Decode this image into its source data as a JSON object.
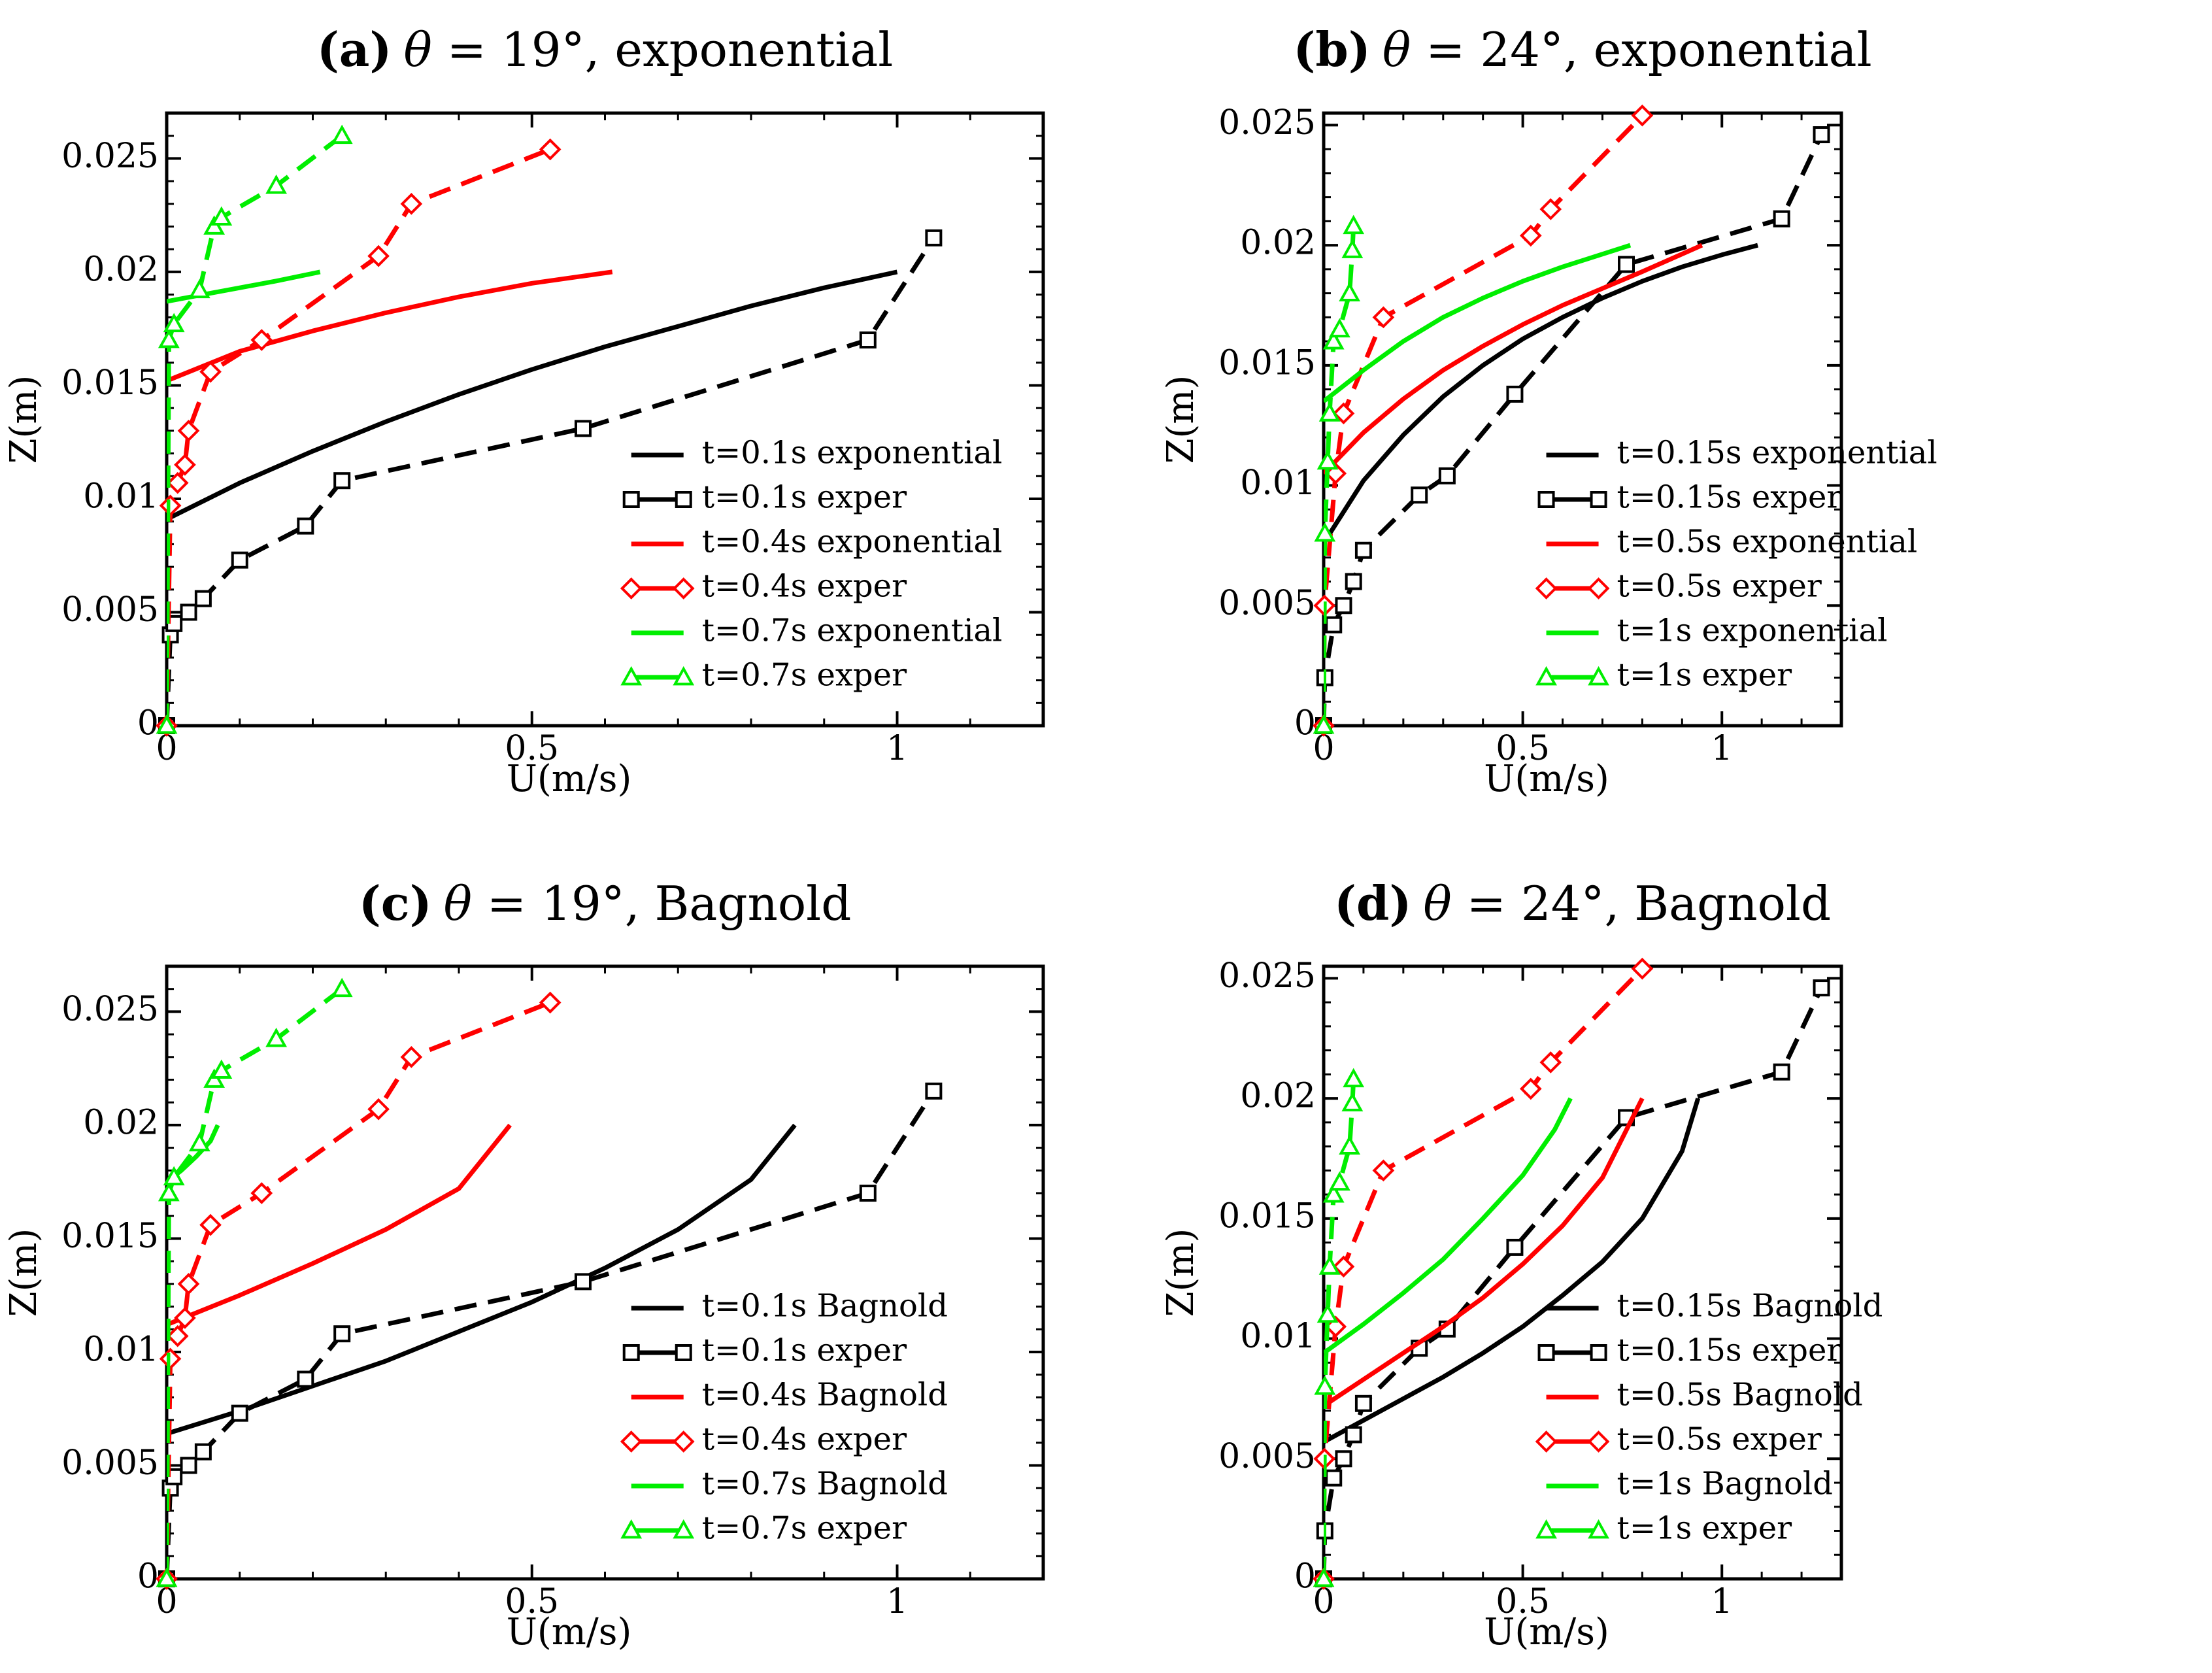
{
  "chart_data": [
    {
      "type": "line",
      "title": {
        "label": "(a)",
        "greek": "θ",
        "rest": " = 19°, exponential"
      },
      "xlabel": "U(m/s)",
      "ylabel": "Z(m)",
      "xlim": [
        0,
        1.2
      ],
      "ylim": [
        0,
        0.027
      ],
      "xticks": [
        {
          "v": 0,
          "label": "0"
        },
        {
          "v": 0.5,
          "label": "0.5"
        },
        {
          "v": 1,
          "label": "1"
        }
      ],
      "yticks": [
        {
          "v": 0,
          "label": "0"
        },
        {
          "v": 0.005,
          "label": "0.005"
        },
        {
          "v": 0.01,
          "label": "0.01"
        },
        {
          "v": 0.015,
          "label": "0.015"
        },
        {
          "v": 0.02,
          "label": "0.02"
        },
        {
          "v": 0.025,
          "label": "0.025"
        }
      ],
      "legend_position": "bottom-right",
      "series": [
        {
          "name": "t=0.1s exponential",
          "color": "#000000",
          "style": "solid",
          "marker": "none",
          "x": [
            0,
            0.1,
            0.2,
            0.3,
            0.4,
            0.5,
            0.6,
            0.7,
            0.8,
            0.9,
            1.0
          ],
          "y": [
            0.0091,
            0.0107,
            0.0121,
            0.0134,
            0.0146,
            0.0157,
            0.0167,
            0.0176,
            0.0185,
            0.0193,
            0.02
          ]
        },
        {
          "name": "t=0.1s exper",
          "color": "#000000",
          "style": "dashed",
          "marker": "square",
          "x": [
            0.0,
            0.005,
            0.01,
            0.03,
            0.05,
            0.1,
            0.19,
            0.24,
            0.57,
            0.96,
            1.05
          ],
          "y": [
            0.0,
            0.004,
            0.0045,
            0.005,
            0.0056,
            0.0073,
            0.0088,
            0.0108,
            0.0131,
            0.017,
            0.0215
          ]
        },
        {
          "name": "t=0.4s exponential",
          "color": "#ff0000",
          "style": "solid",
          "marker": "none",
          "x": [
            0,
            0.1,
            0.2,
            0.3,
            0.4,
            0.5,
            0.61
          ],
          "y": [
            0.0152,
            0.0165,
            0.0174,
            0.0182,
            0.0189,
            0.0195,
            0.02
          ]
        },
        {
          "name": "t=0.4s exper",
          "color": "#ff0000",
          "style": "dashed",
          "marker": "diamond",
          "x": [
            0.0,
            0.005,
            0.015,
            0.025,
            0.03,
            0.06,
            0.13,
            0.29,
            0.335,
            0.525
          ],
          "y": [
            0.0,
            0.0097,
            0.0107,
            0.0115,
            0.013,
            0.0156,
            0.017,
            0.0207,
            0.023,
            0.0254
          ]
        },
        {
          "name": "t=0.7s exponential",
          "color": "#00ee00",
          "style": "solid",
          "marker": "none",
          "x": [
            0,
            0.05,
            0.1,
            0.15,
            0.21
          ],
          "y": [
            0.0187,
            0.019,
            0.0193,
            0.0196,
            0.02
          ]
        },
        {
          "name": "t=0.7s exper",
          "color": "#00ee00",
          "style": "dashed",
          "marker": "triangle",
          "x": [
            0.0,
            0.003,
            0.01,
            0.045,
            0.065,
            0.075,
            0.15,
            0.24
          ],
          "y": [
            0.0,
            0.017,
            0.0177,
            0.0192,
            0.022,
            0.0224,
            0.0238,
            0.026
          ]
        }
      ]
    },
    {
      "type": "line",
      "title": {
        "label": "(b)",
        "greek": "θ",
        "rest": " = 24°, exponential"
      },
      "xlabel": "U(m/s)",
      "ylabel": "Z(m)",
      "xlim": [
        0,
        1.3
      ],
      "ylim": [
        0,
        0.0255
      ],
      "xticks": [
        {
          "v": 0,
          "label": "0"
        },
        {
          "v": 0.5,
          "label": "0.5"
        },
        {
          "v": 1,
          "label": "1"
        }
      ],
      "yticks": [
        {
          "v": 0,
          "label": "0"
        },
        {
          "v": 0.005,
          "label": "0.005"
        },
        {
          "v": 0.01,
          "label": "0.01"
        },
        {
          "v": 0.015,
          "label": "0.015"
        },
        {
          "v": 0.02,
          "label": "0.02"
        },
        {
          "v": 0.025,
          "label": "0.025"
        }
      ],
      "legend_position": "bottom-right",
      "series": [
        {
          "name": "t=0.15s exponential",
          "color": "#000000",
          "style": "solid",
          "marker": "none",
          "x": [
            0,
            0.1,
            0.2,
            0.3,
            0.4,
            0.5,
            0.6,
            0.7,
            0.8,
            0.9,
            1.0,
            1.09
          ],
          "y": [
            0.0076,
            0.0102,
            0.0121,
            0.0137,
            0.015,
            0.0161,
            0.017,
            0.0178,
            0.0185,
            0.0191,
            0.0196,
            0.02
          ]
        },
        {
          "name": "t=0.15s exper",
          "color": "#000000",
          "style": "dashed",
          "marker": "square",
          "x": [
            0.0,
            0.003,
            0.025,
            0.05,
            0.075,
            0.1,
            0.24,
            0.31,
            0.48,
            0.76,
            1.15,
            1.25
          ],
          "y": [
            0.0,
            0.002,
            0.0042,
            0.005,
            0.006,
            0.0073,
            0.0096,
            0.0104,
            0.0138,
            0.0192,
            0.0211,
            0.0246
          ]
        },
        {
          "name": "t=0.5s exponential",
          "color": "#ff0000",
          "style": "solid",
          "marker": "none",
          "x": [
            0,
            0.1,
            0.2,
            0.3,
            0.4,
            0.5,
            0.6,
            0.7,
            0.8,
            0.95
          ],
          "y": [
            0.0105,
            0.0122,
            0.0136,
            0.0148,
            0.0158,
            0.0167,
            0.0175,
            0.0182,
            0.0189,
            0.02
          ]
        },
        {
          "name": "t=0.5s exper",
          "color": "#ff0000",
          "style": "dashed",
          "marker": "diamond",
          "x": [
            0.0,
            0.002,
            0.03,
            0.05,
            0.15,
            0.52,
            0.57,
            0.8
          ],
          "y": [
            0.0,
            0.005,
            0.0105,
            0.013,
            0.017,
            0.0204,
            0.0215,
            0.0254
          ]
        },
        {
          "name": "t=1s exponential",
          "color": "#00ee00",
          "style": "solid",
          "marker": "none",
          "x": [
            0,
            0.1,
            0.2,
            0.3,
            0.4,
            0.5,
            0.6,
            0.77
          ],
          "y": [
            0.0135,
            0.0148,
            0.016,
            0.017,
            0.0178,
            0.0185,
            0.0191,
            0.02
          ]
        },
        {
          "name": "t=1s exper",
          "color": "#00ee00",
          "style": "dashed",
          "marker": "triangle",
          "x": [
            0.0,
            0.003,
            0.01,
            0.015,
            0.025,
            0.04,
            0.065,
            0.072,
            0.075
          ],
          "y": [
            0.0,
            0.008,
            0.011,
            0.013,
            0.016,
            0.0165,
            0.018,
            0.0198,
            0.0208
          ]
        }
      ]
    },
    {
      "type": "line",
      "title": {
        "label": "(c)",
        "greek": "θ",
        "rest": " = 19°, Bagnold"
      },
      "xlabel": "U(m/s)",
      "ylabel": "Z(m)",
      "xlim": [
        0,
        1.2
      ],
      "ylim": [
        0,
        0.027
      ],
      "xticks": [
        {
          "v": 0,
          "label": "0"
        },
        {
          "v": 0.5,
          "label": "0.5"
        },
        {
          "v": 1,
          "label": "1"
        }
      ],
      "yticks": [
        {
          "v": 0,
          "label": "0"
        },
        {
          "v": 0.005,
          "label": "0.005"
        },
        {
          "v": 0.01,
          "label": "0.01"
        },
        {
          "v": 0.015,
          "label": "0.015"
        },
        {
          "v": 0.02,
          "label": "0.02"
        },
        {
          "v": 0.025,
          "label": "0.025"
        }
      ],
      "legend_position": "bottom-right",
      "series": [
        {
          "name": "t=0.1s Bagnold",
          "color": "#000000",
          "style": "solid",
          "marker": "none",
          "x": [
            0,
            0.1,
            0.2,
            0.3,
            0.4,
            0.5,
            0.6,
            0.7,
            0.8,
            0.86
          ],
          "y": [
            0.0064,
            0.0074,
            0.0085,
            0.0096,
            0.0109,
            0.0122,
            0.0137,
            0.0154,
            0.0176,
            0.02
          ]
        },
        {
          "name": "t=0.1s exper",
          "color": "#000000",
          "style": "dashed",
          "marker": "square",
          "x": [
            0.0,
            0.005,
            0.01,
            0.03,
            0.05,
            0.1,
            0.19,
            0.24,
            0.57,
            0.96,
            1.05
          ],
          "y": [
            0.0,
            0.004,
            0.0045,
            0.005,
            0.0056,
            0.0073,
            0.0088,
            0.0108,
            0.0131,
            0.017,
            0.0215
          ]
        },
        {
          "name": "t=0.4s Bagnold",
          "color": "#ff0000",
          "style": "solid",
          "marker": "none",
          "x": [
            0,
            0.1,
            0.2,
            0.3,
            0.4,
            0.47
          ],
          "y": [
            0.0112,
            0.0125,
            0.0139,
            0.0154,
            0.0172,
            0.02
          ]
        },
        {
          "name": "t=0.4s exper",
          "color": "#ff0000",
          "style": "dashed",
          "marker": "diamond",
          "x": [
            0.0,
            0.005,
            0.015,
            0.025,
            0.03,
            0.06,
            0.13,
            0.29,
            0.335,
            0.525
          ],
          "y": [
            0.0,
            0.0097,
            0.0107,
            0.0115,
            0.013,
            0.0156,
            0.017,
            0.0207,
            0.023,
            0.0254
          ]
        },
        {
          "name": "t=0.7s Bagnold",
          "color": "#00ee00",
          "style": "solid",
          "marker": "none",
          "x": [
            0,
            0.02,
            0.04,
            0.06,
            0.07
          ],
          "y": [
            0.0175,
            0.018,
            0.0186,
            0.0193,
            0.02
          ]
        },
        {
          "name": "t=0.7s exper",
          "color": "#00ee00",
          "style": "dashed",
          "marker": "triangle",
          "x": [
            0.0,
            0.003,
            0.01,
            0.045,
            0.065,
            0.075,
            0.15,
            0.24
          ],
          "y": [
            0.0,
            0.017,
            0.0177,
            0.0192,
            0.022,
            0.0224,
            0.0238,
            0.026
          ]
        }
      ]
    },
    {
      "type": "line",
      "title": {
        "label": "(d)",
        "greek": "θ",
        "rest": " = 24°, Bagnold"
      },
      "xlabel": "U(m/s)",
      "ylabel": "Z(m)",
      "xlim": [
        0,
        1.3
      ],
      "ylim": [
        0,
        0.0255
      ],
      "xticks": [
        {
          "v": 0,
          "label": "0"
        },
        {
          "v": 0.5,
          "label": "0.5"
        },
        {
          "v": 1,
          "label": "1"
        }
      ],
      "yticks": [
        {
          "v": 0,
          "label": "0"
        },
        {
          "v": 0.005,
          "label": "0.005"
        },
        {
          "v": 0.01,
          "label": "0.01"
        },
        {
          "v": 0.015,
          "label": "0.015"
        },
        {
          "v": 0.02,
          "label": "0.02"
        },
        {
          "v": 0.025,
          "label": "0.025"
        }
      ],
      "legend_position": "bottom-right",
      "series": [
        {
          "name": "t=0.15s Bagnold",
          "color": "#000000",
          "style": "solid",
          "marker": "none",
          "x": [
            0,
            0.1,
            0.2,
            0.3,
            0.4,
            0.5,
            0.6,
            0.7,
            0.8,
            0.9,
            0.94
          ],
          "y": [
            0.0057,
            0.0066,
            0.0075,
            0.0084,
            0.0094,
            0.0105,
            0.0118,
            0.0132,
            0.015,
            0.0178,
            0.02
          ]
        },
        {
          "name": "t=0.15s exper",
          "color": "#000000",
          "style": "dashed",
          "marker": "square",
          "x": [
            0.0,
            0.003,
            0.025,
            0.05,
            0.075,
            0.1,
            0.24,
            0.31,
            0.48,
            0.76,
            1.15,
            1.25
          ],
          "y": [
            0.0,
            0.002,
            0.0042,
            0.005,
            0.006,
            0.0073,
            0.0096,
            0.0104,
            0.0138,
            0.0192,
            0.0211,
            0.0246
          ]
        },
        {
          "name": "t=0.5s Bagnold",
          "color": "#ff0000",
          "style": "solid",
          "marker": "none",
          "x": [
            0,
            0.1,
            0.2,
            0.3,
            0.4,
            0.5,
            0.6,
            0.7,
            0.8
          ],
          "y": [
            0.0072,
            0.0083,
            0.0094,
            0.0105,
            0.0117,
            0.0131,
            0.0147,
            0.0167,
            0.02
          ]
        },
        {
          "name": "t=0.5s exper",
          "color": "#ff0000",
          "style": "dashed",
          "marker": "diamond",
          "x": [
            0.0,
            0.002,
            0.03,
            0.05,
            0.15,
            0.52,
            0.57,
            0.8
          ],
          "y": [
            0.0,
            0.005,
            0.0105,
            0.013,
            0.017,
            0.0204,
            0.0215,
            0.0254
          ]
        },
        {
          "name": "t=1s Bagnold",
          "color": "#00ee00",
          "style": "solid",
          "marker": "none",
          "x": [
            0,
            0.1,
            0.2,
            0.3,
            0.4,
            0.5,
            0.58,
            0.62
          ],
          "y": [
            0.0094,
            0.0106,
            0.0119,
            0.0133,
            0.015,
            0.0168,
            0.0187,
            0.02
          ]
        },
        {
          "name": "t=1s exper",
          "color": "#00ee00",
          "style": "dashed",
          "marker": "triangle",
          "x": [
            0.0,
            0.003,
            0.01,
            0.015,
            0.025,
            0.04,
            0.065,
            0.072,
            0.075
          ],
          "y": [
            0.0,
            0.008,
            0.011,
            0.013,
            0.016,
            0.0165,
            0.018,
            0.0198,
            0.0208
          ]
        }
      ]
    }
  ]
}
